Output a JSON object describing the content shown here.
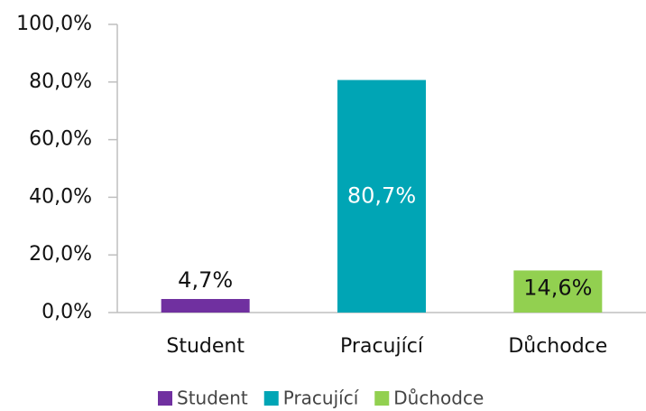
{
  "chart_data": {
    "type": "bar",
    "categories": [
      "Student",
      "Pracující",
      "Důchodce"
    ],
    "values": [
      4.7,
      80.7,
      14.6
    ],
    "value_labels": [
      "4,7%",
      "80,7%",
      "14,6%"
    ],
    "colors": [
      "#7030a0",
      "#00a5b5",
      "#92d050"
    ],
    "ylim": [
      0,
      100
    ],
    "yticks": [
      {
        "value": 0,
        "label": "0,0%"
      },
      {
        "value": 20,
        "label": "20,0%"
      },
      {
        "value": 40,
        "label": "40,0%"
      },
      {
        "value": 60,
        "label": "60,0%"
      },
      {
        "value": 80,
        "label": "80,0%"
      },
      {
        "value": 100,
        "label": "100,0%"
      }
    ],
    "grid": false,
    "legend": "bottom"
  }
}
